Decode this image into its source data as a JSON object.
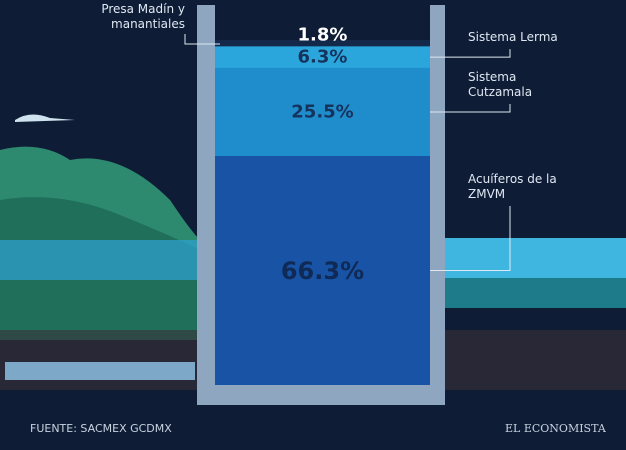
{
  "chart_data": {
    "type": "stacked-container",
    "categories": [
      "Presa Madín y manantiales",
      "Sistema Lerma",
      "Sistema Cutzamala",
      "Acuíferos de la ZMVM"
    ],
    "values": [
      1.8,
      6.3,
      25.5,
      66.3
    ],
    "value_labels": [
      "1.8%",
      "6.3%",
      "25.5%",
      "66.3%"
    ],
    "colors": [
      "#14284a",
      "#2aa6dc",
      "#1f8ccc",
      "#1853a6"
    ],
    "label_colors": [
      "#ffffff",
      "#16335c",
      "#16335c",
      "#0f2a55"
    ],
    "source": "FUENTE: SACMEX GCDMX",
    "brand": "EL ECONOMISTA"
  }
}
